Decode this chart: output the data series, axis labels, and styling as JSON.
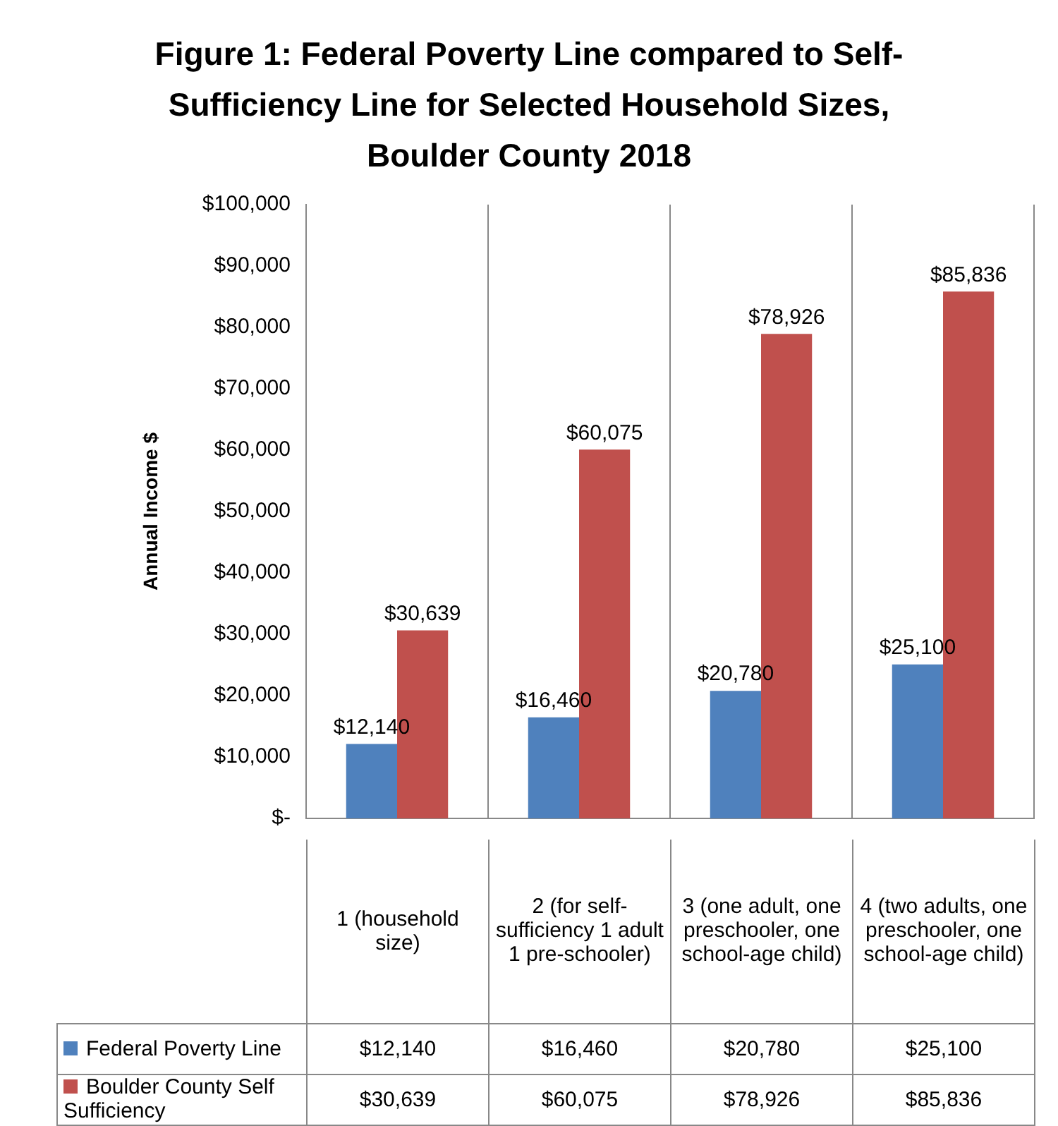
{
  "chart_data": {
    "type": "bar",
    "title": "Figure 1: Federal Poverty Line compared to Self-Sufficiency Line for Selected Household Sizes, Boulder County 2018",
    "ylabel": "Annual Income $",
    "categories": [
      "1 (household size)",
      "2 (for self-sufficiency 1 adult 1 pre-schooler)",
      "3 (one adult, one preschooler, one school-age child)",
      "4 (two adults, one preschooler, one school-age child)"
    ],
    "series": [
      {
        "name": "Federal Poverty Line",
        "color": "#4f81bd",
        "values": [
          12140,
          16460,
          20780,
          25100
        ],
        "value_labels": [
          "$12,140",
          "$16,460",
          "$20,780",
          "$25,100"
        ]
      },
      {
        "name": "Boulder County Self Sufficiency",
        "color": "#c0504d",
        "values": [
          30639,
          60075,
          78926,
          85836
        ],
        "value_labels": [
          "$30,639",
          "$60,075",
          "$78,926",
          "$85,836"
        ]
      }
    ],
    "ylim": [
      0,
      100000
    ],
    "yticks": [
      {
        "value": 0,
        "label": "$-"
      },
      {
        "value": 10000,
        "label": "$10,000"
      },
      {
        "value": 20000,
        "label": "$20,000"
      },
      {
        "value": 30000,
        "label": "$30,000"
      },
      {
        "value": 40000,
        "label": "$40,000"
      },
      {
        "value": 50000,
        "label": "$50,000"
      },
      {
        "value": 60000,
        "label": "$60,000"
      },
      {
        "value": 70000,
        "label": "$70,000"
      },
      {
        "value": 80000,
        "label": "$80,000"
      },
      {
        "value": 90000,
        "label": "$90,000"
      },
      {
        "value": 100000,
        "label": "$100,000"
      }
    ],
    "grid": "x",
    "legend": "bottom"
  }
}
